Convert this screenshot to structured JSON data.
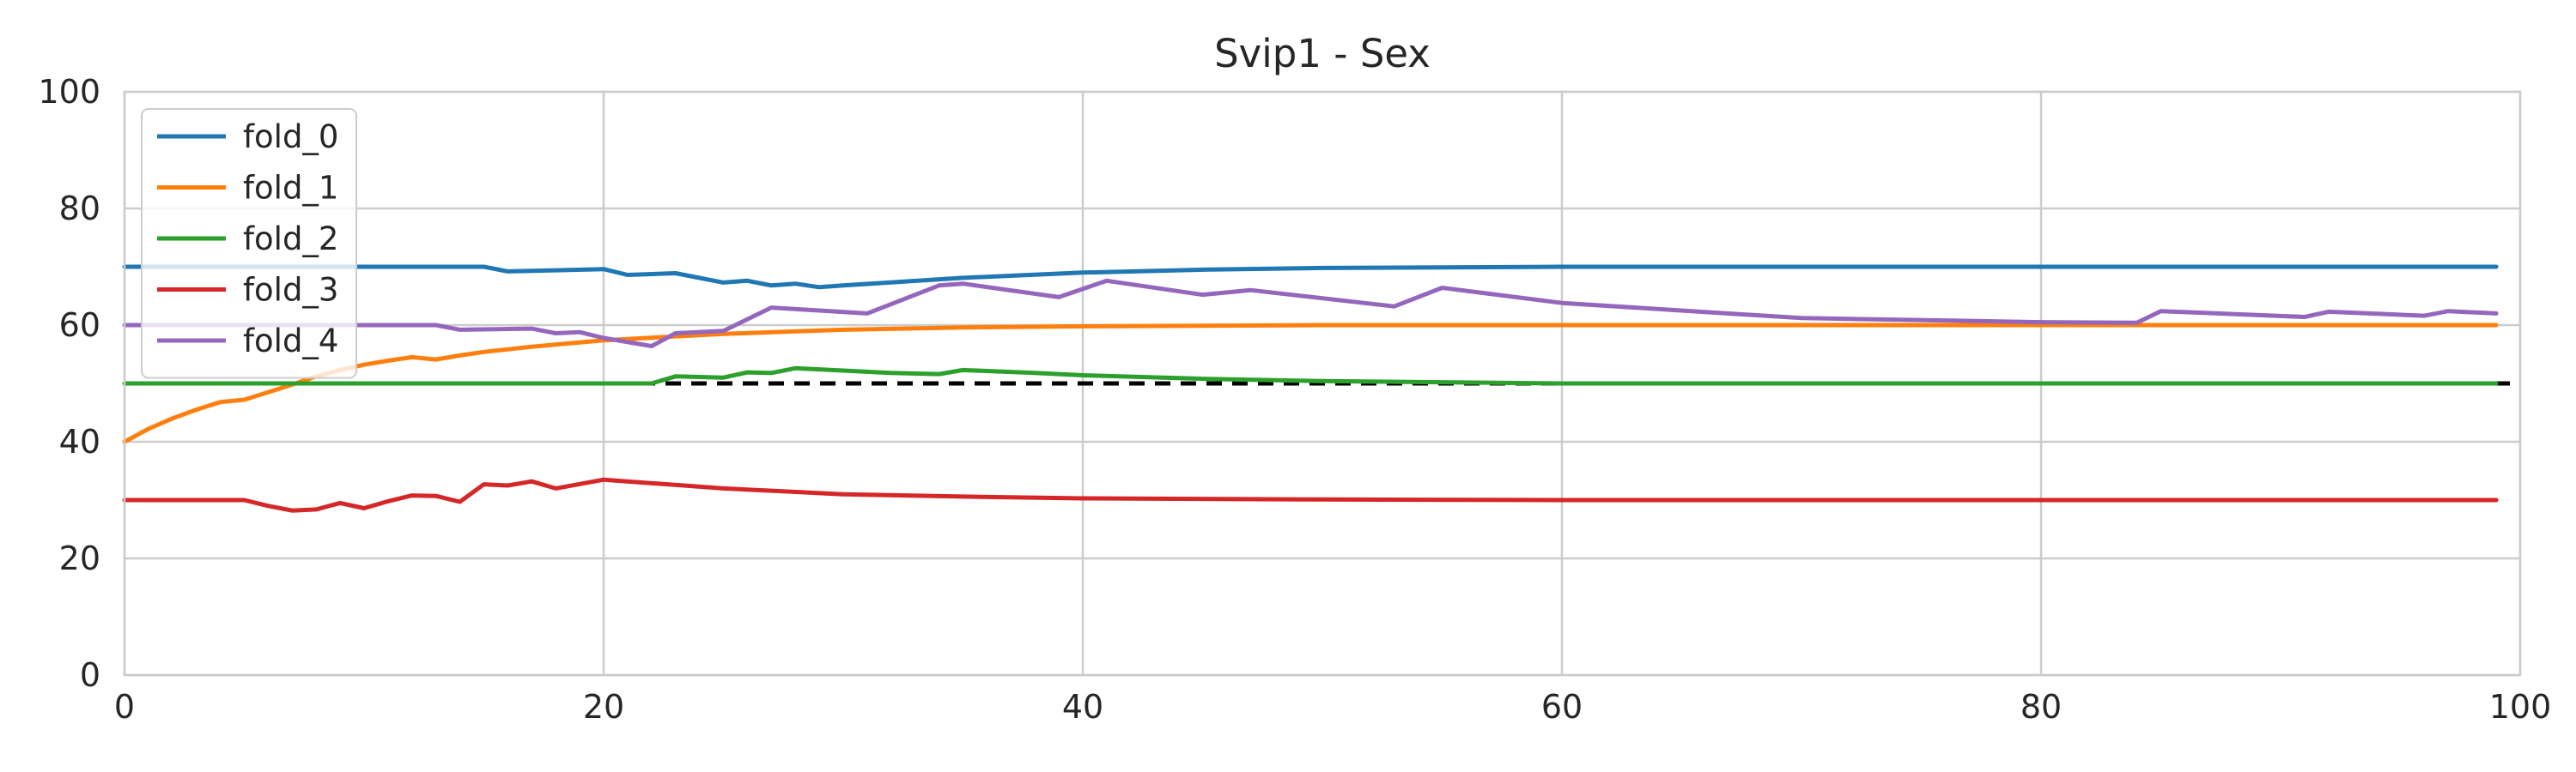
{
  "chart_data": {
    "type": "line",
    "title": "Svip1 - Sex",
    "xlabel": "",
    "ylabel": "",
    "xlim": [
      0,
      100
    ],
    "ylim": [
      0,
      100
    ],
    "xticks": [
      0,
      20,
      40,
      60,
      80,
      100
    ],
    "yticks": [
      0,
      20,
      40,
      60,
      80,
      100
    ],
    "grid": true,
    "legend_position": "top-left",
    "reference_line": {
      "y": 50,
      "style": "dashed",
      "color": "#000000"
    },
    "series": [
      {
        "name": "fold_0",
        "color": "#1f77b4",
        "points": [
          [
            0,
            70
          ],
          [
            5,
            70
          ],
          [
            10,
            70
          ],
          [
            15,
            70
          ],
          [
            16,
            69.2
          ],
          [
            18,
            69.4
          ],
          [
            20,
            69.6
          ],
          [
            21,
            68.6
          ],
          [
            23,
            68.9
          ],
          [
            25,
            67.3
          ],
          [
            26,
            67.6
          ],
          [
            27,
            66.8
          ],
          [
            28,
            67.1
          ],
          [
            29,
            66.5
          ],
          [
            30,
            66.8
          ],
          [
            35,
            68.1
          ],
          [
            40,
            69
          ],
          [
            45,
            69.5
          ],
          [
            50,
            69.8
          ],
          [
            60,
            70
          ],
          [
            70,
            70
          ],
          [
            80,
            70
          ],
          [
            90,
            70
          ],
          [
            99,
            70
          ]
        ]
      },
      {
        "name": "fold_1",
        "color": "#ff7f0e",
        "points": [
          [
            0,
            40
          ],
          [
            1,
            42.2
          ],
          [
            2,
            44
          ],
          [
            3,
            45.5
          ],
          [
            4,
            46.8
          ],
          [
            5,
            47.2
          ],
          [
            6,
            48.5
          ],
          [
            7,
            49.8
          ],
          [
            8,
            51.2
          ],
          [
            9,
            52.3
          ],
          [
            10,
            53.2
          ],
          [
            11,
            53.9
          ],
          [
            12,
            54.5
          ],
          [
            13,
            54.1
          ],
          [
            14,
            54.8
          ],
          [
            15,
            55.4
          ],
          [
            17,
            56.3
          ],
          [
            20,
            57.4
          ],
          [
            25,
            58.5
          ],
          [
            30,
            59.2
          ],
          [
            35,
            59.6
          ],
          [
            40,
            59.8
          ],
          [
            50,
            60
          ],
          [
            60,
            60
          ],
          [
            70,
            60
          ],
          [
            80,
            60
          ],
          [
            90,
            60
          ],
          [
            99,
            60
          ]
        ]
      },
      {
        "name": "fold_2",
        "color": "#2ca02c",
        "points": [
          [
            0,
            50
          ],
          [
            10,
            50
          ],
          [
            20,
            50
          ],
          [
            22,
            50
          ],
          [
            23,
            51.2
          ],
          [
            25,
            51
          ],
          [
            26,
            51.9
          ],
          [
            27,
            51.8
          ],
          [
            28,
            52.6
          ],
          [
            30,
            52.2
          ],
          [
            32,
            51.8
          ],
          [
            34,
            51.6
          ],
          [
            35,
            52.3
          ],
          [
            38,
            51.8
          ],
          [
            40,
            51.4
          ],
          [
            45,
            50.8
          ],
          [
            50,
            50.4
          ],
          [
            55,
            50.2
          ],
          [
            60,
            50
          ],
          [
            70,
            50
          ],
          [
            80,
            50
          ],
          [
            90,
            50
          ],
          [
            99,
            50
          ]
        ]
      },
      {
        "name": "fold_3",
        "color": "#d62728",
        "points": [
          [
            0,
            30
          ],
          [
            5,
            30
          ],
          [
            6,
            29
          ],
          [
            7,
            28.2
          ],
          [
            8,
            28.4
          ],
          [
            9,
            29.5
          ],
          [
            10,
            28.6
          ],
          [
            11,
            29.8
          ],
          [
            12,
            30.8
          ],
          [
            13,
            30.7
          ],
          [
            14,
            29.7
          ],
          [
            15,
            32.7
          ],
          [
            16,
            32.5
          ],
          [
            17,
            33.2
          ],
          [
            18,
            32
          ],
          [
            20,
            33.5
          ],
          [
            25,
            32
          ],
          [
            30,
            31
          ],
          [
            35,
            30.6
          ],
          [
            40,
            30.3
          ],
          [
            50,
            30.1
          ],
          [
            60,
            30
          ],
          [
            70,
            30
          ],
          [
            80,
            30
          ],
          [
            90,
            30
          ],
          [
            99,
            30
          ]
        ]
      },
      {
        "name": "fold_4",
        "color": "#9467bd",
        "points": [
          [
            0,
            60
          ],
          [
            5,
            60
          ],
          [
            10,
            60
          ],
          [
            13,
            60
          ],
          [
            14,
            59.2
          ],
          [
            17,
            59.4
          ],
          [
            18,
            58.6
          ],
          [
            19,
            58.8
          ],
          [
            20,
            57.8
          ],
          [
            22,
            56.4
          ],
          [
            23,
            58.6
          ],
          [
            25,
            59
          ],
          [
            27,
            63
          ],
          [
            31,
            62
          ],
          [
            34,
            66.8
          ],
          [
            35,
            67.1
          ],
          [
            39,
            64.8
          ],
          [
            41,
            67.6
          ],
          [
            45,
            65.2
          ],
          [
            47,
            66
          ],
          [
            53,
            63.2
          ],
          [
            55,
            66.4
          ],
          [
            60,
            63.8
          ],
          [
            70,
            61.2
          ],
          [
            80,
            60.5
          ],
          [
            84,
            60.4
          ],
          [
            85,
            62.4
          ],
          [
            91,
            61.4
          ],
          [
            92,
            62.3
          ],
          [
            96,
            61.6
          ],
          [
            97,
            62.4
          ],
          [
            99,
            62
          ]
        ]
      }
    ]
  }
}
